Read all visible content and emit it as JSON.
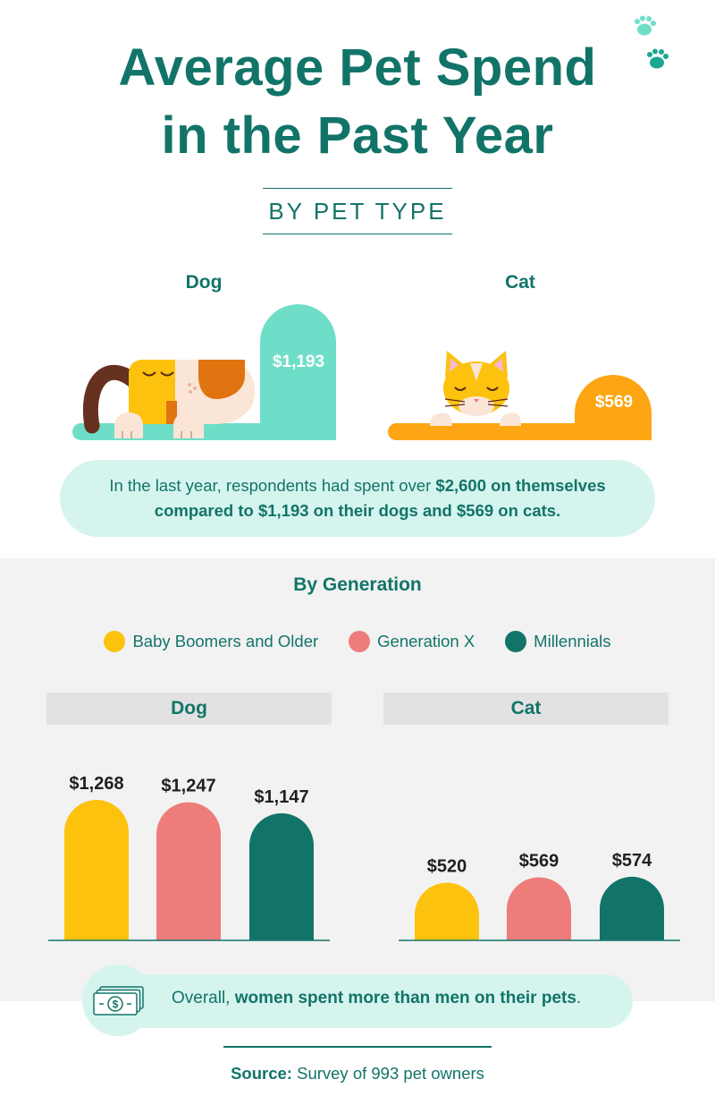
{
  "title": {
    "line1": "Average Pet Spend",
    "line2": "in the Past Year"
  },
  "subtitle": "BY PET TYPE",
  "pet_type": {
    "dog_label": "Dog",
    "cat_label": "Cat",
    "dog_value_label": "$1,193",
    "cat_value_label": "$569"
  },
  "summary": {
    "part1": "In the last year, respondents had spent over ",
    "bold1": "$2,600 on themselves compared to $1,193 on their dogs and $569 on cats."
  },
  "generation": {
    "title": "By Generation",
    "dog_panel_title": "Dog",
    "cat_panel_title": "Cat"
  },
  "footnote": {
    "part1": "Overall, ",
    "bold": "women spent more than men on their pets",
    "part2": "."
  },
  "source": {
    "label": "Source:",
    "text": " Survey of 993 pet owners"
  },
  "colors": {
    "teal_dark": "#127468",
    "mint": "#6fdec8",
    "orange": "#fda512",
    "boomers": "#fcc20e",
    "genx": "#ee7c7b",
    "millennials": "#127468"
  },
  "icons": [
    "paw-icon",
    "dog-illustration",
    "cat-illustration",
    "money-icon"
  ],
  "chart_data": [
    {
      "type": "bar",
      "title": "By Pet Type",
      "categories": [
        "Dog",
        "Cat"
      ],
      "values": [
        1193,
        569
      ],
      "value_labels": [
        "$1,193",
        "$569"
      ]
    },
    {
      "type": "bar",
      "title": "By Generation",
      "categories": [
        "Dog",
        "Cat"
      ],
      "legend": "top-center",
      "grid": false,
      "ylim": [
        0,
        1300
      ],
      "series": [
        {
          "name": "Baby Boomers and Older",
          "color": "#fcc20e",
          "values": [
            1268,
            520
          ],
          "value_labels": [
            "$1,268",
            "$520"
          ]
        },
        {
          "name": "Generation X",
          "color": "#ee7c7b",
          "values": [
            1247,
            569
          ],
          "value_labels": [
            "$1,247",
            "$569"
          ]
        },
        {
          "name": "Millennials",
          "color": "#127468",
          "values": [
            1147,
            574
          ],
          "value_labels": [
            "$1,147",
            "$574"
          ]
        }
      ]
    }
  ]
}
